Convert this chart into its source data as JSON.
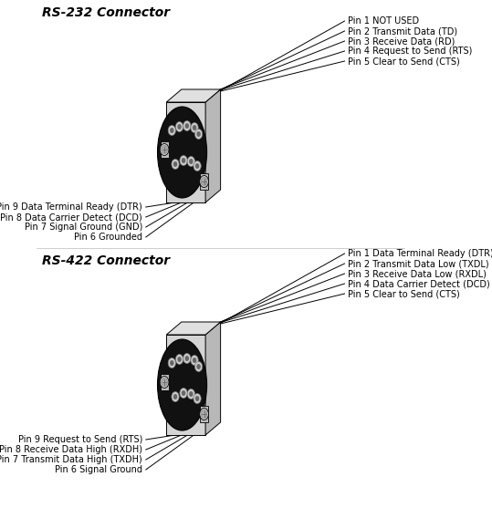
{
  "title1": "RS-232 Connector",
  "title2": "RS-422 Connector",
  "rs232_right_labels": [
    "Pin 5 Clear to Send (CTS)",
    "Pin 4 Request to Send (RTS)",
    "Pin 3 Receive Data (RD)",
    "Pin 2 Transmit Data (TD)",
    "Pin 1 NOT USED"
  ],
  "rs232_left_labels": [
    "Pin 9 Data Terminal Ready (DTR)",
    "Pin 8 Data Carrier Detect (DCD)",
    "Pin 7 Signal Ground (GND)",
    "Pin 6 Grounded"
  ],
  "rs422_right_labels": [
    "Pin 5 Clear to Send (CTS)",
    "Pin 4 Data Carrier Detect (DCD)",
    "Pin 3 Receive Data Low (RXDL)",
    "Pin 2 Transmit Data Low (TXDL)",
    "Pin 1 Data Terminal Ready (DTR)"
  ],
  "rs422_left_labels": [
    "Pin 9 Request to Send (RTS)",
    "Pin 8 Receive Data High (RXDH)",
    "Pin 7 Transmit Data High (TXDH)",
    "Pin 6 Signal Ground"
  ],
  "line_color": "#000000",
  "connector_body_color": "#111111",
  "plate_face_color": "#d4d4d4",
  "plate_side_color": "#b8b8b8",
  "plate_top_color": "#e0e0e0",
  "screw_outer_color": "#aaaaaa",
  "screw_inner_color": "#cccccc",
  "pin_color": "#cccccc",
  "pin_inner_color": "#888888",
  "text_color": "#000000",
  "font_size": 7.0,
  "title_font_size": 10.0
}
